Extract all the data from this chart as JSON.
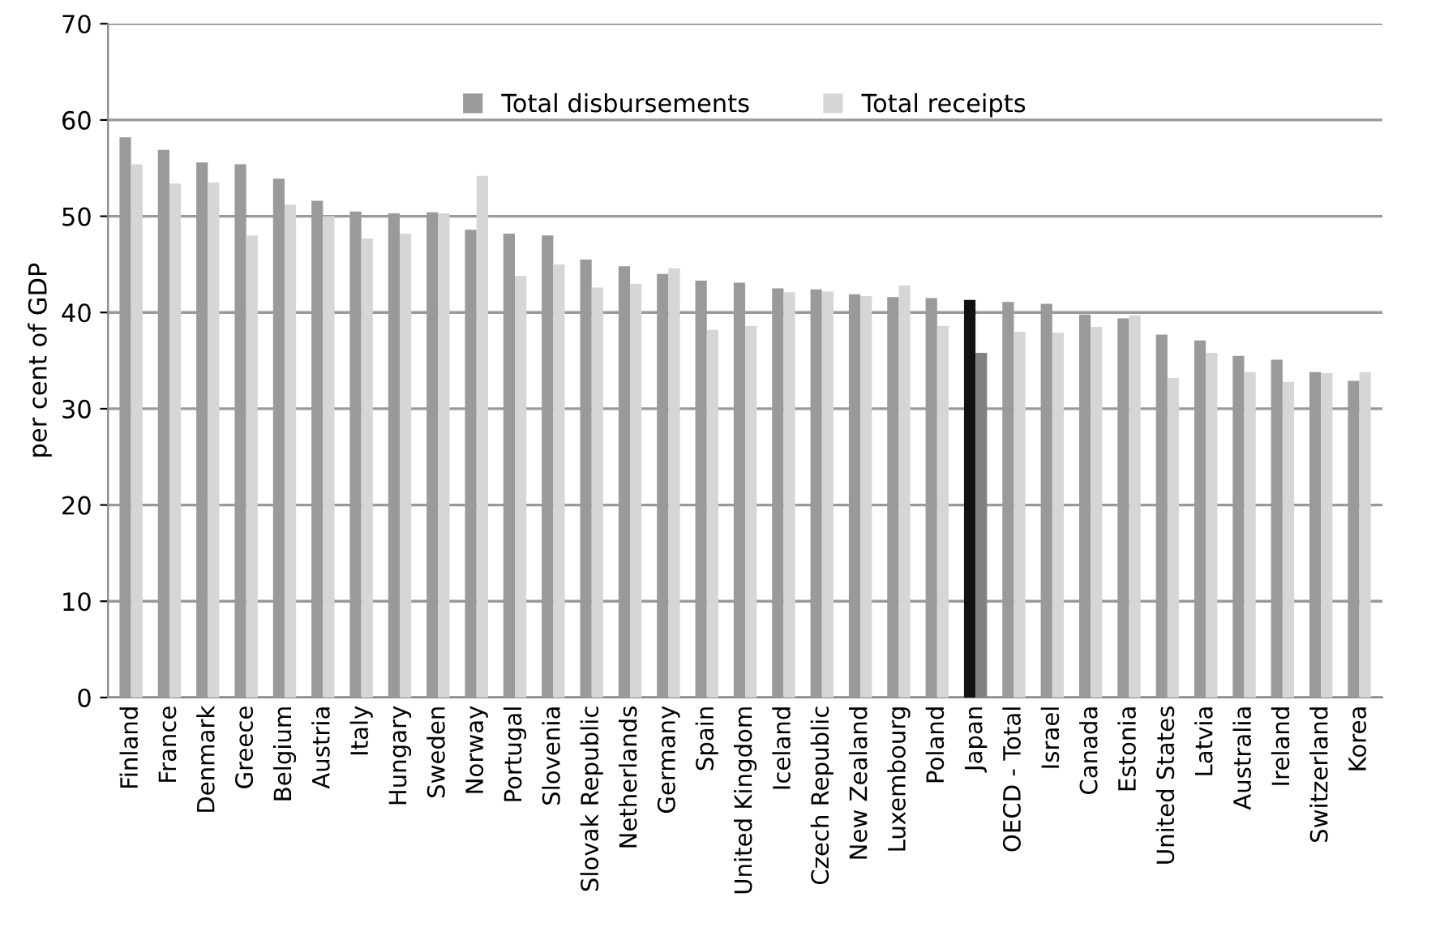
{
  "chart_data": {
    "type": "bar",
    "ylabel": "per cent of GDP",
    "categories": [
      "Finland",
      "France",
      "Denmark",
      "Greece",
      "Belgium",
      "Austria",
      "Italy",
      "Hungary",
      "Sweden",
      "Norway",
      "Portugal",
      "Slovenia",
      "Slovak Republic",
      "Netherlands",
      "Germany",
      "Spain",
      "United Kingdom",
      "Iceland",
      "Czech Republic",
      "New Zealand",
      "Luxembourg",
      "Poland",
      "Japan",
      "OECD - Total",
      "Israel",
      "Canada",
      "Estonia",
      "United States",
      "Latvia",
      "Australia",
      "Ireland",
      "Switzerland",
      "Korea"
    ],
    "series": [
      {
        "name": "Total disbursements",
        "color": "#9a9a9a",
        "colors": [
          "#9a9a9a",
          "#9a9a9a",
          "#9a9a9a",
          "#9a9a9a",
          "#9a9a9a",
          "#9a9a9a",
          "#9a9a9a",
          "#9a9a9a",
          "#9a9a9a",
          "#9a9a9a",
          "#9a9a9a",
          "#9a9a9a",
          "#9a9a9a",
          "#9a9a9a",
          "#9a9a9a",
          "#9a9a9a",
          "#9a9a9a",
          "#9a9a9a",
          "#9a9a9a",
          "#9a9a9a",
          "#9a9a9a",
          "#9a9a9a",
          "#111111",
          "#9a9a9a",
          "#9a9a9a",
          "#9a9a9a",
          "#9a9a9a",
          "#9a9a9a",
          "#9a9a9a",
          "#9a9a9a",
          "#9a9a9a",
          "#9a9a9a",
          "#9a9a9a"
        ],
        "values": [
          58.2,
          56.9,
          55.6,
          55.4,
          53.9,
          51.6,
          50.5,
          50.3,
          50.4,
          48.6,
          48.2,
          48.0,
          45.5,
          44.8,
          44.0,
          43.3,
          43.1,
          42.5,
          42.4,
          41.9,
          41.6,
          41.5,
          41.3,
          41.1,
          40.9,
          39.8,
          39.4,
          37.7,
          37.1,
          35.5,
          35.1,
          33.8,
          32.9
        ]
      },
      {
        "name": "Total receipts",
        "color": "#d6d6d6",
        "colors": [
          "#d6d6d6",
          "#d6d6d6",
          "#d6d6d6",
          "#d6d6d6",
          "#d6d6d6",
          "#d6d6d6",
          "#d6d6d6",
          "#d6d6d6",
          "#d6d6d6",
          "#d6d6d6",
          "#d6d6d6",
          "#d6d6d6",
          "#d6d6d6",
          "#d6d6d6",
          "#d6d6d6",
          "#d6d6d6",
          "#d6d6d6",
          "#d6d6d6",
          "#d6d6d6",
          "#d6d6d6",
          "#d6d6d6",
          "#d6d6d6",
          "#808080",
          "#d6d6d6",
          "#d6d6d6",
          "#d6d6d6",
          "#d6d6d6",
          "#d6d6d6",
          "#d6d6d6",
          "#d6d6d6",
          "#d6d6d6",
          "#d6d6d6",
          "#d6d6d6"
        ],
        "values": [
          55.4,
          53.4,
          53.5,
          48.0,
          51.2,
          50.0,
          47.7,
          48.2,
          50.3,
          54.2,
          43.8,
          45.0,
          42.6,
          43.0,
          44.6,
          38.2,
          38.6,
          42.1,
          42.2,
          41.7,
          42.8,
          38.6,
          35.8,
          38.0,
          37.9,
          38.5,
          39.7,
          33.2,
          35.8,
          33.8,
          32.8,
          33.7,
          33.8
        ]
      }
    ],
    "ylim": [
      0,
      70
    ],
    "yticks": [
      0,
      10,
      20,
      30,
      40,
      50,
      60,
      70
    ],
    "grid": "y",
    "legend": "top"
  }
}
